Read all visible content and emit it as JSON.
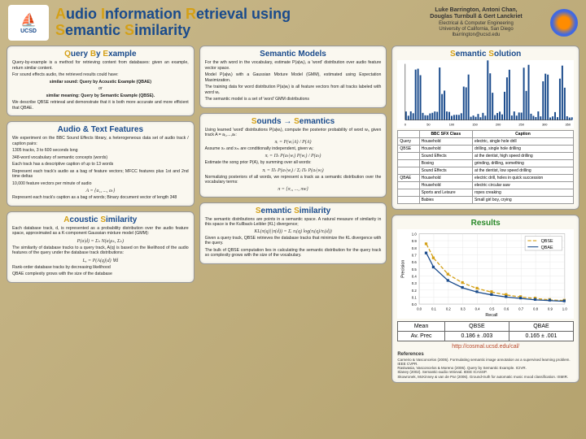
{
  "header": {
    "logo_text": "UCSD",
    "title_parts": [
      "A",
      "udio ",
      "I",
      "nformation ",
      "R",
      "etrieval using ",
      "S",
      "emantic ",
      "S",
      "imilarity"
    ],
    "authors_line1": "Luke Barrington, Antoni Chan,",
    "authors_line2": "Douglas Turnbull & Gert Lanckriet",
    "dept": "Electrical & Computer Engineering",
    "univ": "University of California, San Diego",
    "email": "lbarrington@ucsd.edu"
  },
  "qbe": {
    "title": [
      "Q",
      "uery ",
      "B",
      "y ",
      "E",
      "xample"
    ],
    "p1": "Query-by-example is a method for retrieving content from databases: given an example, return similar content.",
    "p2": "For sound effects audio, the retrieved results could have:",
    "p3": "similar sound: Query by Acoustic Example (QBAE)",
    "or": "or",
    "p4": "similar meaning: Query by Semantic Example (QBSE).",
    "p5": "We describe QBSE retrieval and demonstrate that it is both more accurate and more efficient that QBAE."
  },
  "atf": {
    "title": "Audio & Text Features",
    "p1": "We experiment on the BBC Sound Effects library, a heterogeneous data set of audio track / caption pairs:",
    "l1": "1305 tracks, 3 to 600 seconds long",
    "l2": "348-word vocabulary of semantic concepts (words)",
    "l3": "Each track has a descriptive caption of up to 13 words",
    "p2": "Represent each track's audio as a bag of feature vectors; MFCC features plus 1st and 2nd time deltas",
    "p3": "10,000 feature vectors per minute of audio",
    "eq1": "A = {a₁, ..., aₜ}",
    "p4": "Represent each track's caption as a bag of words; Binary document vector of length 348"
  },
  "as": {
    "title": [
      "A",
      "coustic ",
      "S",
      "imilarity"
    ],
    "p1": "Each database track, d, is represented as a probability distribution over the audio feature space, approximated as a K-component Gaussian mixture model (GMM):",
    "eq1": "P(a|d) = Σₖ N(a|μₖ, Σₖ)",
    "p2": "The similarity of database tracks to a query track, A(q) is based on the likelihood of the audio features of the query under the database track distributions:",
    "eq2": "Lₐ = P(A(q)|d) ∀d",
    "p3": "Rank-order database tracks by decreasing likelihood",
    "p4": "QBAE complexity grows with the size of the database"
  },
  "sm": {
    "title": "Semantic Models",
    "p1": "For the wth word in the vocabulary, estimate P(a|wᵢ), a 'word' distribution over audio feature vector space.",
    "p2": "Model P(a|wᵢ) with a Gaussian Mixture Model (GMM), estimated using Expectation Maximization.",
    "p3": "The training data for word distribution P(a|wᵢ) is all feature vectors from all tracks labeled with word wᵢ.",
    "p4": "The semantic model is a set of 'word' GMM distributions"
  },
  "sts": {
    "title": [
      "S",
      "ounds → ",
      "S",
      "emantics"
    ],
    "p1": "Using learned 'word' distributions P(a|wᵢ), compute the posterior probability of word wᵢ, given track A = a₁,...,aₜ:",
    "eq1": "πᵢ = P(wᵢ|A) / P(A)",
    "p2": "Assume xₙ and xₘ are conditionally independent, given wᵢ:",
    "eq2": "πᵢ = Πₜ P(aₜ|wᵢ) P(wᵢ) / P(aₜ)",
    "p3": "Estimate the song prior P(A), by summing over all words:",
    "eq3": "πᵢ = Πₜ P(aₜ|wᵢ) / Σⱼ Πₜ P(aₜ|wⱼ)",
    "p4": "Normalizing posteriors of all words, we represent a track as a semantic distribution over the vocabulary terms:",
    "eq4": "π = {π₁, ..., πw}"
  },
  "ss": {
    "title": [
      "S",
      "emantic ",
      "S",
      "imilarity"
    ],
    "p1": "The semantic distributions are points in a semantic space. A natural measure of similarity in this space is the Kullback-Leibler (KL) divergence;",
    "eq1": "KL(π(q)||π(d)) = Σᵢ πᵢ(q) log(πᵢ(q)/πᵢ(d))",
    "p2": "Given a query track, QBSE retrieves the database tracks that minimize the KL divergence with the query.",
    "p3": "The bulk of QBSE computation lies in calculating the semantic distribution for the query track so complexity grows with the size of the vocabulary."
  },
  "sol": {
    "title": [
      "S",
      "emantic ",
      "S",
      "olution"
    ]
  },
  "spectrum": {
    "n_bars": 70,
    "max_height": 78,
    "peaks": [
      5,
      15,
      25,
      35,
      42,
      50,
      58,
      65
    ],
    "xlim": [
      0,
      350
    ],
    "xticks": [
      0,
      50,
      100,
      150,
      200,
      250,
      300,
      350
    ]
  },
  "caption_table": {
    "headers": [
      "",
      "BBC SFX Class",
      "Caption"
    ],
    "rows": [
      [
        "Query",
        "Household",
        "electric, single hole drill"
      ],
      [
        "QBSE",
        "Household",
        "drilling, single hole drilling"
      ],
      [
        "",
        "Sound Effects",
        "at the dentist, high speed drilling"
      ],
      [
        "",
        "Boxing",
        "grinding, drilling, something"
      ],
      [
        "",
        "Sound Effects",
        "at the dentist, low speed drilling"
      ],
      [
        "QBAE",
        "Household",
        "electric drill, holes in quick succession"
      ],
      [
        "",
        "Household",
        "electric circular saw"
      ],
      [
        "",
        "Sports and Leisure",
        "ropes creaking"
      ],
      [
        "",
        "Babies",
        "Small girl boy, crying"
      ]
    ]
  },
  "results": {
    "title": "Results",
    "curves": {
      "qbse": {
        "color": "#d4a017",
        "dash": "4,2",
        "points": [
          [
            0.05,
            0.85
          ],
          [
            0.1,
            0.65
          ],
          [
            0.2,
            0.42
          ],
          [
            0.3,
            0.3
          ],
          [
            0.4,
            0.22
          ],
          [
            0.5,
            0.17
          ],
          [
            0.6,
            0.13
          ],
          [
            0.7,
            0.1
          ],
          [
            0.8,
            0.08
          ],
          [
            0.9,
            0.06
          ],
          [
            1.0,
            0.05
          ]
        ]
      },
      "qbae": {
        "color": "#1a4b8c",
        "dash": "none",
        "points": [
          [
            0.05,
            0.72
          ],
          [
            0.1,
            0.52
          ],
          [
            0.2,
            0.33
          ],
          [
            0.3,
            0.23
          ],
          [
            0.4,
            0.17
          ],
          [
            0.5,
            0.13
          ],
          [
            0.6,
            0.1
          ],
          [
            0.7,
            0.08
          ],
          [
            0.8,
            0.06
          ],
          [
            0.9,
            0.05
          ],
          [
            1.0,
            0.04
          ]
        ]
      }
    },
    "xlabel": "Recall",
    "ylabel": "Precision",
    "xlim": [
      0,
      1
    ],
    "ylim": [
      0,
      1
    ],
    "legend": [
      "QBSE",
      "QBAE"
    ]
  },
  "mean_table": {
    "r1": [
      "Mean",
      "QBSE",
      "QBAE"
    ],
    "r2": [
      "Av. Prec",
      "0.186 ± .003",
      "0.165 ± .001"
    ]
  },
  "link": "http://cosmal.ucsd.edu/cal/",
  "refs": {
    "title": "References",
    "items": [
      "Carneiro & Vasconcelos (2005). Formulating semantic image annotation as a supervised learning problem. IEEE CVPR.",
      "Rasiwasia, Vasconcelos & Moreno (2006). Query by Semantic Example. ICIVR.",
      "Slaney (2002). Semantic-audio retrieval. IEEE ICASSP.",
      "Skowronek, McKinney & van de Par (2006). Ground-truth for automatic music mood classification. ISMIR."
    ]
  }
}
